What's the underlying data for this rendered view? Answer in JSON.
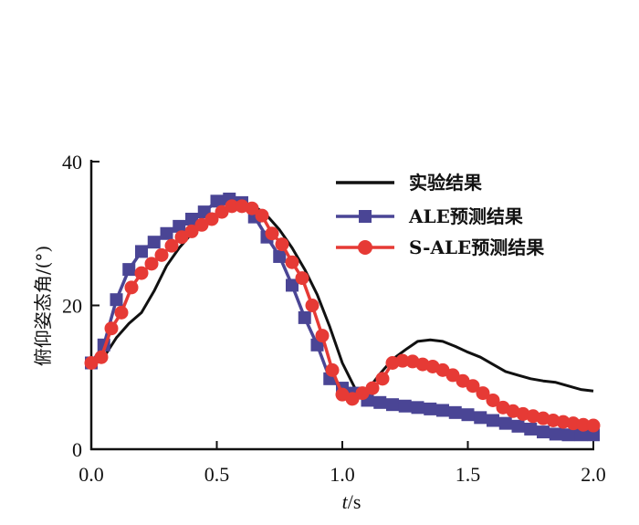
{
  "chart_data": {
    "type": "line",
    "title": "",
    "xlabel_italic": "t",
    "xlabel_unit": "/s",
    "ylabel": "俯仰姿态角/(°)",
    "xlim": [
      0,
      2.0
    ],
    "ylim": [
      0,
      40
    ],
    "xticks": [
      "0.0",
      "0.5",
      "1.0",
      "1.5",
      "2.0"
    ],
    "xtick_values": [
      0,
      0.5,
      1.0,
      1.5,
      2.0
    ],
    "yticks": [
      "0",
      "20",
      "40"
    ],
    "ytick_values": [
      0,
      20,
      40
    ],
    "grid": false,
    "legend_position": "top-right",
    "series": [
      {
        "name": "实验结果",
        "color": "#111111",
        "marker": "none",
        "x": [
          0.0,
          0.05,
          0.1,
          0.15,
          0.2,
          0.25,
          0.3,
          0.35,
          0.4,
          0.45,
          0.5,
          0.55,
          0.6,
          0.65,
          0.7,
          0.75,
          0.8,
          0.85,
          0.9,
          0.95,
          1.0,
          1.05,
          1.1,
          1.15,
          1.2,
          1.25,
          1.3,
          1.35,
          1.4,
          1.45,
          1.5,
          1.55,
          1.6,
          1.65,
          1.7,
          1.75,
          1.8,
          1.85,
          1.9,
          1.95,
          2.0
        ],
        "y": [
          11.5,
          12.8,
          15.5,
          17.5,
          19.0,
          22.0,
          25.5,
          28.0,
          30.0,
          31.5,
          32.8,
          33.8,
          34.0,
          33.8,
          32.5,
          30.5,
          28.0,
          25.0,
          21.5,
          17.0,
          12.0,
          8.5,
          8.2,
          10.5,
          12.5,
          13.8,
          15.0,
          15.2,
          15.0,
          14.3,
          13.5,
          12.8,
          11.8,
          10.8,
          10.3,
          9.8,
          9.5,
          9.3,
          8.8,
          8.3,
          8.1
        ]
      },
      {
        "name": "ALE预测结果",
        "color": "#4a4595",
        "marker": "square",
        "x": [
          0.0,
          0.05,
          0.1,
          0.15,
          0.2,
          0.25,
          0.3,
          0.35,
          0.4,
          0.45,
          0.5,
          0.55,
          0.6,
          0.65,
          0.7,
          0.75,
          0.8,
          0.85,
          0.9,
          0.95,
          1.0,
          1.05,
          1.1,
          1.15,
          1.2,
          1.25,
          1.3,
          1.35,
          1.4,
          1.45,
          1.5,
          1.55,
          1.6,
          1.65,
          1.7,
          1.75,
          1.8,
          1.85,
          1.9,
          1.95,
          2.0
        ],
        "y": [
          12.0,
          14.5,
          20.8,
          25.0,
          27.5,
          28.8,
          30.0,
          31.0,
          32.0,
          33.0,
          34.5,
          34.8,
          34.3,
          32.3,
          29.5,
          26.8,
          22.8,
          18.3,
          14.5,
          9.8,
          8.5,
          7.8,
          6.8,
          6.5,
          6.2,
          6.0,
          5.8,
          5.6,
          5.4,
          5.1,
          4.8,
          4.4,
          4.0,
          3.6,
          3.2,
          2.8,
          2.4,
          2.1,
          2.0,
          2.0,
          2.0
        ]
      },
      {
        "name": "S-ALE预测结果",
        "color": "#e63a35",
        "marker": "circle",
        "x": [
          0.0,
          0.04,
          0.08,
          0.12,
          0.16,
          0.2,
          0.24,
          0.28,
          0.32,
          0.36,
          0.4,
          0.44,
          0.48,
          0.52,
          0.56,
          0.6,
          0.64,
          0.68,
          0.72,
          0.76,
          0.8,
          0.84,
          0.88,
          0.92,
          0.96,
          1.0,
          1.04,
          1.08,
          1.12,
          1.16,
          1.2,
          1.24,
          1.28,
          1.32,
          1.36,
          1.4,
          1.44,
          1.48,
          1.52,
          1.56,
          1.6,
          1.64,
          1.68,
          1.72,
          1.76,
          1.8,
          1.84,
          1.88,
          1.92,
          1.96,
          2.0
        ],
        "y": [
          12.0,
          12.8,
          16.8,
          19.0,
          22.5,
          24.5,
          25.8,
          27.0,
          28.3,
          29.5,
          30.3,
          31.2,
          32.0,
          33.0,
          33.8,
          33.8,
          33.5,
          32.5,
          30.0,
          28.5,
          26.0,
          23.8,
          20.0,
          15.8,
          11.0,
          7.6,
          7.0,
          7.8,
          8.5,
          9.8,
          12.0,
          12.3,
          12.2,
          11.8,
          11.5,
          11.0,
          10.3,
          9.5,
          8.8,
          7.8,
          6.8,
          5.8,
          5.3,
          4.9,
          4.6,
          4.3,
          4.0,
          3.8,
          3.6,
          3.4,
          3.3
        ]
      }
    ]
  }
}
